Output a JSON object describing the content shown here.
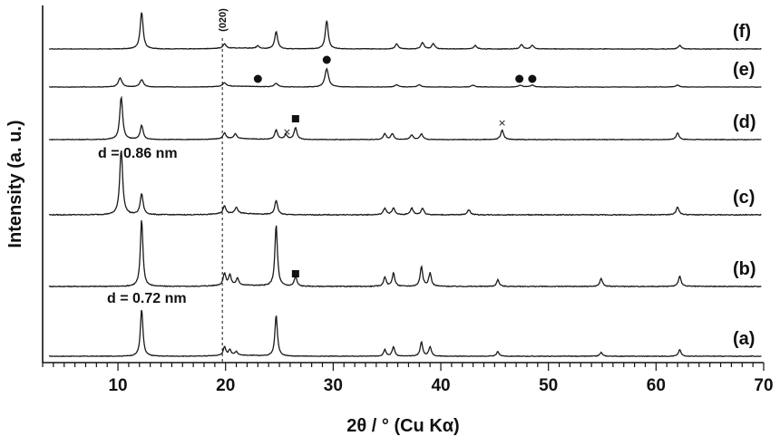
{
  "chart_data": {
    "type": "line",
    "title": "",
    "xlabel": "2θ / ° (Cu Kα)",
    "ylabel": "Intensity (a. u.)",
    "xlim": [
      3,
      70
    ],
    "x_major_ticks": [
      10,
      20,
      30,
      40,
      50,
      60,
      70
    ],
    "x_minor_step": 1,
    "y_ticks": "none",
    "legend": "none (traces labeled at right)",
    "reference_line": {
      "x": 19.7,
      "label": "(020)",
      "style": "dashed"
    },
    "series": [
      {
        "name": "(a)",
        "peaks": [
          [
            12.2,
            1.0
          ],
          [
            19.9,
            0.18
          ],
          [
            20.4,
            0.12
          ],
          [
            21.0,
            0.08
          ],
          [
            24.7,
            0.88
          ],
          [
            34.8,
            0.14
          ],
          [
            35.6,
            0.2
          ],
          [
            38.2,
            0.3
          ],
          [
            39.0,
            0.2
          ],
          [
            45.3,
            0.1
          ],
          [
            54.9,
            0.08
          ],
          [
            62.2,
            0.14
          ]
        ]
      },
      {
        "name": "(b)",
        "peaks": [
          [
            12.2,
            1.0
          ],
          [
            19.9,
            0.18
          ],
          [
            20.4,
            0.15
          ],
          [
            21.1,
            0.1
          ],
          [
            24.7,
            0.92
          ],
          [
            26.5,
            0.15
          ],
          [
            34.8,
            0.14
          ],
          [
            35.6,
            0.2
          ],
          [
            38.2,
            0.3
          ],
          [
            39.0,
            0.2
          ],
          [
            45.3,
            0.1
          ],
          [
            54.9,
            0.12
          ],
          [
            62.2,
            0.16
          ]
        ]
      },
      {
        "name": "(c)",
        "peaks": [
          [
            10.3,
            1.0
          ],
          [
            12.2,
            0.32
          ],
          [
            19.9,
            0.12
          ],
          [
            21.0,
            0.1
          ],
          [
            24.7,
            0.22
          ],
          [
            34.8,
            0.1
          ],
          [
            35.6,
            0.1
          ],
          [
            37.3,
            0.1
          ],
          [
            38.3,
            0.1
          ],
          [
            42.6,
            0.08
          ],
          [
            62.0,
            0.12
          ]
        ]
      },
      {
        "name": "(d)",
        "peaks": [
          [
            10.3,
            0.9
          ],
          [
            12.2,
            0.3
          ],
          [
            19.9,
            0.12
          ],
          [
            20.9,
            0.1
          ],
          [
            24.7,
            0.2
          ],
          [
            25.6,
            0.1
          ],
          [
            26.5,
            0.25
          ],
          [
            34.8,
            0.12
          ],
          [
            35.5,
            0.12
          ],
          [
            37.3,
            0.1
          ],
          [
            38.2,
            0.12
          ],
          [
            45.7,
            0.2
          ],
          [
            62.0,
            0.14
          ]
        ]
      },
      {
        "name": "(e)",
        "peaks": [
          [
            10.2,
            0.25
          ],
          [
            12.2,
            0.2
          ],
          [
            19.9,
            0.1
          ],
          [
            24.7,
            0.1
          ],
          [
            29.4,
            0.5
          ],
          [
            35.9,
            0.06
          ],
          [
            38.0,
            0.06
          ],
          [
            43.0,
            0.05
          ],
          [
            47.4,
            0.05
          ],
          [
            48.5,
            0.05
          ],
          [
            62.0,
            0.05
          ]
        ]
      },
      {
        "name": "(f)",
        "peaks": [
          [
            12.2,
            0.85
          ],
          [
            19.9,
            0.1
          ],
          [
            23.0,
            0.06
          ],
          [
            24.7,
            0.4
          ],
          [
            29.4,
            0.65
          ],
          [
            35.9,
            0.12
          ],
          [
            38.3,
            0.15
          ],
          [
            39.3,
            0.12
          ],
          [
            43.2,
            0.08
          ],
          [
            47.5,
            0.1
          ],
          [
            48.5,
            0.08
          ],
          [
            62.2,
            0.08
          ]
        ]
      }
    ],
    "annotations": {
      "d_values": [
        {
          "text": "d = 0.72 nm",
          "x": 12.2,
          "near": "(b)"
        },
        {
          "text": "d = 0.86 nm",
          "x": 10.3,
          "near": "(d)"
        }
      ],
      "markers": [
        {
          "symbol": "■",
          "series": "(b)",
          "x": 26.5
        },
        {
          "symbol": "■",
          "series": "(d)",
          "x": 26.5
        },
        {
          "symbol": "×",
          "series": "(d)",
          "x": 25.7
        },
        {
          "symbol": "×",
          "series": "(d)",
          "x": 45.7
        },
        {
          "symbol": "●",
          "series": "(e)",
          "x": 23.0
        },
        {
          "symbol": "●",
          "series": "(e)",
          "x": 29.4
        },
        {
          "symbol": "●",
          "series": "(e)",
          "x": 47.3
        },
        {
          "symbol": "●",
          "series": "(e)",
          "x": 48.5
        }
      ]
    }
  }
}
